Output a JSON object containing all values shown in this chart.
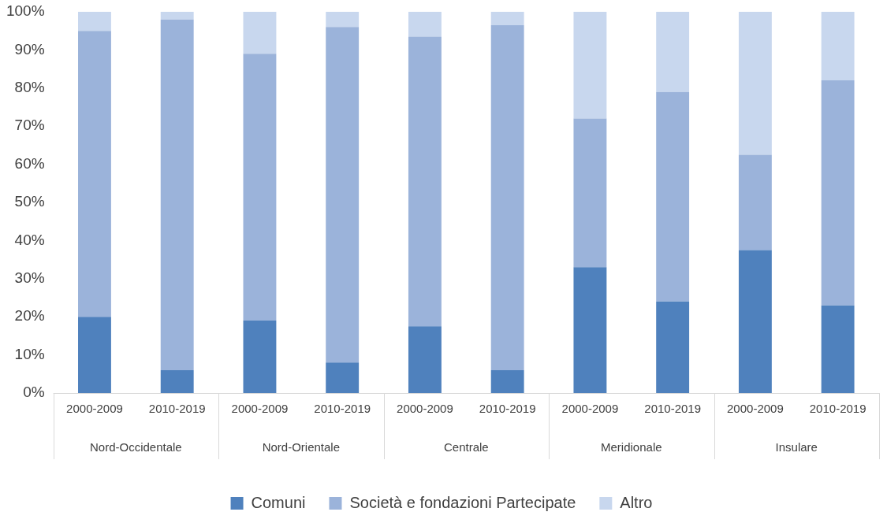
{
  "chart_data": {
    "type": "bar",
    "stacked": true,
    "categories": [
      "2000-2009",
      "2010-2019",
      "2000-2009",
      "2010-2019",
      "2000-2009",
      "2010-2019",
      "2000-2009",
      "2010-2019",
      "2000-2009",
      "2010-2019"
    ],
    "annotations": [
      "Nord-Occidentale",
      "Nord-Orientale",
      "Centrale",
      "Meridionale",
      "Insulare"
    ],
    "series": [
      {
        "name": "Comuni",
        "color": "#4f81bd",
        "values": [
          20,
          6,
          19,
          8,
          17.5,
          6,
          33,
          24,
          37.5,
          23
        ]
      },
      {
        "name": "Società e fondazioni Partecipate",
        "color": "#9bb3da",
        "values": [
          75,
          92,
          70,
          88,
          76,
          90.5,
          39,
          55,
          25,
          59
        ]
      },
      {
        "name": "Altro",
        "color": "#c8d7ee",
        "values": [
          5,
          2,
          11,
          4,
          6.5,
          3.5,
          28,
          21,
          37.5,
          18
        ]
      }
    ],
    "ylim": [
      0,
      100
    ],
    "yticks": [
      {
        "value": 0,
        "label": "0%"
      },
      {
        "value": 10,
        "label": "10%"
      },
      {
        "value": 20,
        "label": "20%"
      },
      {
        "value": 30,
        "label": "30%"
      },
      {
        "value": 40,
        "label": "40%"
      },
      {
        "value": 50,
        "label": "50%"
      },
      {
        "value": 60,
        "label": "60%"
      },
      {
        "value": 70,
        "label": "70%"
      },
      {
        "value": 80,
        "label": "80%"
      },
      {
        "value": 90,
        "label": "90%"
      },
      {
        "value": 100,
        "label": "100%"
      }
    ],
    "grid": false,
    "legend": "bottom"
  }
}
